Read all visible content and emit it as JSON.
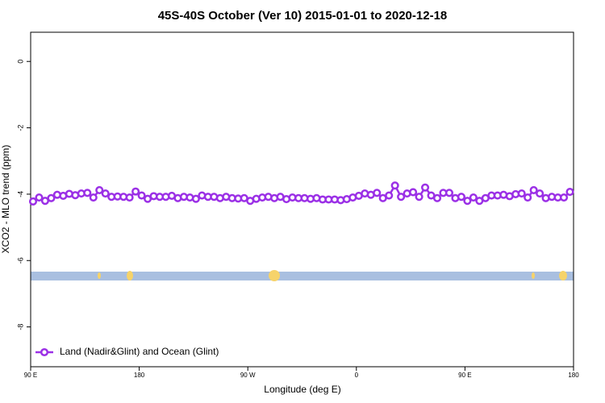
{
  "chart_data": {
    "type": "line",
    "title": "45S-40S October (Ver 10)   2015-01-01 to 2020-12-18",
    "x_label": "Longitude (deg E)",
    "y_label": "XCO2 - MLO trend (ppm)",
    "xlim": [
      90,
      540
    ],
    "xticks": [
      {
        "value": 90,
        "label": "90 E"
      },
      {
        "value": 180,
        "label": "180"
      },
      {
        "value": 270,
        "label": "90 W"
      },
      {
        "value": 360,
        "label": "0"
      },
      {
        "value": 450,
        "label": "90 E"
      },
      {
        "value": 540,
        "label": "180"
      }
    ],
    "ylim": [
      -9.2,
      0.88
    ],
    "yticks": [
      0,
      -2,
      -4,
      -6,
      -8
    ],
    "legend": "bottom-left",
    "series": [
      {
        "name": "Land (Nadir&Glint) and Ocean (Glint)",
        "color": "#9b30e6",
        "x": [
          92,
          97,
          102,
          107,
          112,
          117,
          122,
          127,
          132,
          137,
          142,
          147,
          152,
          157,
          162,
          167,
          172,
          177,
          182,
          187,
          192,
          197,
          202,
          207,
          212,
          217,
          222,
          227,
          232,
          237,
          242,
          247,
          252,
          257,
          262,
          267,
          272,
          277,
          282,
          287,
          292,
          297,
          302,
          307,
          312,
          317,
          322,
          327,
          332,
          337,
          342,
          347,
          352,
          357,
          362,
          367,
          372,
          377,
          382,
          387,
          392,
          397,
          402,
          407,
          412,
          417,
          422,
          427,
          432,
          437,
          442,
          447,
          452,
          457,
          462,
          467,
          472,
          477,
          482,
          487,
          492,
          497,
          502,
          507,
          512,
          517,
          522,
          527,
          532,
          537
        ],
        "values": [
          -4.22,
          -4.1,
          -4.2,
          -4.12,
          -4.02,
          -4.05,
          -3.99,
          -4.03,
          -3.98,
          -3.96,
          -4.1,
          -3.88,
          -3.98,
          -4.08,
          -4.07,
          -4.08,
          -4.1,
          -3.92,
          -4.04,
          -4.14,
          -4.06,
          -4.08,
          -4.08,
          -4.05,
          -4.12,
          -4.08,
          -4.1,
          -4.14,
          -4.04,
          -4.08,
          -4.08,
          -4.12,
          -4.08,
          -4.12,
          -4.13,
          -4.12,
          -4.2,
          -4.14,
          -4.1,
          -4.08,
          -4.12,
          -4.08,
          -4.15,
          -4.1,
          -4.12,
          -4.12,
          -4.14,
          -4.12,
          -4.16,
          -4.16,
          -4.16,
          -4.18,
          -4.15,
          -4.1,
          -4.05,
          -3.98,
          -4.02,
          -3.96,
          -4.12,
          -4.04,
          -3.74,
          -4.08,
          -3.98,
          -3.94,
          -4.08,
          -3.8,
          -4.04,
          -4.12,
          -3.96,
          -3.96,
          -4.12,
          -4.08,
          -4.2,
          -4.1,
          -4.2,
          -4.12,
          -4.04,
          -4.04,
          -4.02,
          -4.06,
          -4.0,
          -3.98,
          -4.1,
          -3.88,
          -3.98,
          -4.12,
          -4.08,
          -4.1,
          -4.1,
          -3.93
        ]
      }
    ]
  }
}
